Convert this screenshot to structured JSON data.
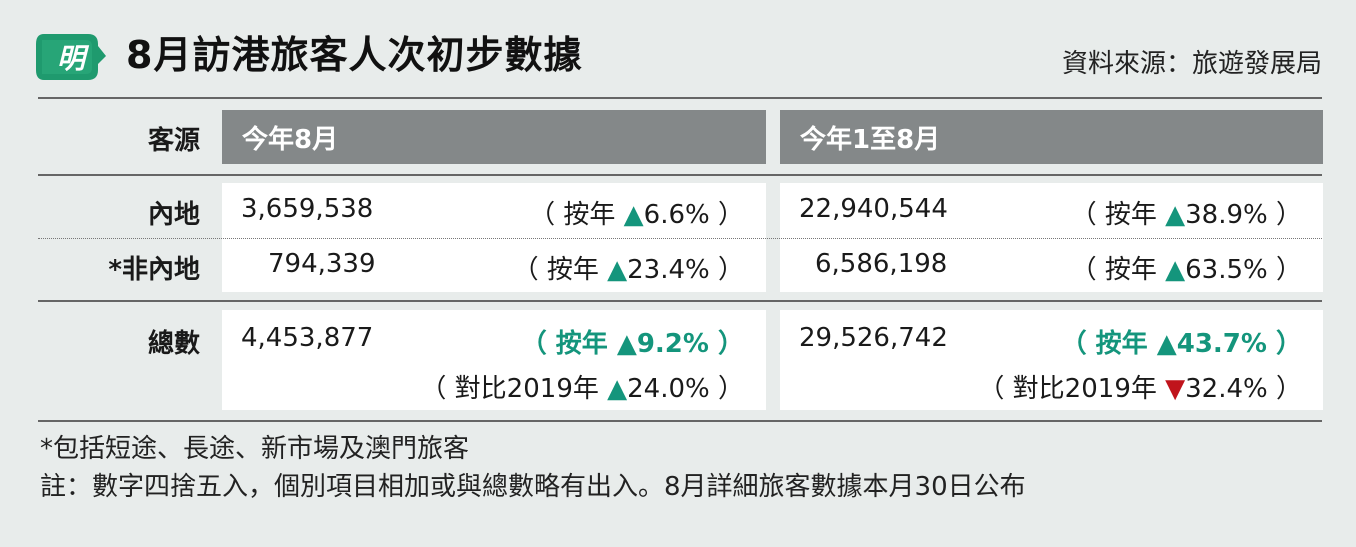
{
  "header": {
    "logo_text": "明",
    "title": "8月訪港旅客人次初步數據",
    "source": "資料來源：旅遊發展局"
  },
  "table": {
    "col_label_header": "客源",
    "col1_header": "今年8月",
    "col2_header": "今年1至8月",
    "rows": [
      {
        "label": "內地",
        "aug_value": "3,659,538",
        "aug_yoy": {
          "prefix": "（ 按年 ",
          "arrow": "▲",
          "pct": "6.6%",
          "suffix": " ）"
        },
        "ytd_value": "22,940,544",
        "ytd_yoy": {
          "prefix": "（ 按年 ",
          "arrow": "▲",
          "pct": "38.9%",
          "suffix": " ）"
        }
      },
      {
        "label": "*非內地",
        "aug_value": "794,339",
        "aug_yoy": {
          "prefix": "（ 按年 ",
          "arrow": "▲",
          "pct": "23.4%",
          "suffix": " ）"
        },
        "ytd_value": "6,586,198",
        "ytd_yoy": {
          "prefix": "（ 按年 ",
          "arrow": "▲",
          "pct": "63.5%",
          "suffix": " ）"
        }
      }
    ],
    "total": {
      "label": "總數",
      "aug_value": "4,453,877",
      "aug_yoy": {
        "prefix": "（ 按年 ",
        "arrow": "▲",
        "pct": "9.2%",
        "suffix": " ）"
      },
      "aug_vs2019": {
        "prefix": "（ 對比2019年 ",
        "arrow": "▲",
        "pct": "24.0%",
        "suffix": " ）"
      },
      "ytd_value": "29,526,742",
      "ytd_yoy": {
        "prefix": "（ 按年 ",
        "arrow": "▲",
        "pct": "43.7%",
        "suffix": " ）"
      },
      "ytd_vs2019": {
        "prefix": "（ 對比2019年 ",
        "arrow": "▼",
        "pct": "32.4%",
        "suffix": " ）"
      }
    }
  },
  "notes": {
    "footnote": "*包括短途、長途、新市場及澳門旅客",
    "remark": "註：數字四捨五入，個別項目相加或與總數略有出入。8月詳細旅客數據本月30日公布"
  },
  "colors": {
    "background": "#e8eceb",
    "header_bar": "#848889",
    "up_green": "#14957c",
    "down_red": "#c0141c",
    "logo_green": "#1f9a6e"
  }
}
